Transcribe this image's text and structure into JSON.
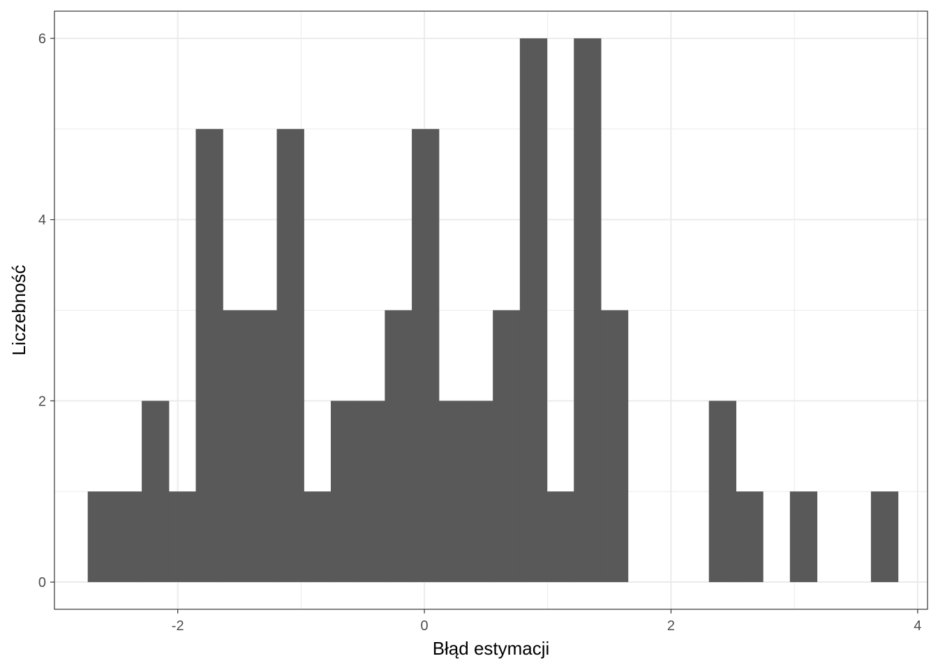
{
  "chart_data": {
    "type": "histogram",
    "xlabel": "Błąd estymacji",
    "ylabel": "Liczebność",
    "xlim": [
      -3.0,
      4.08
    ],
    "ylim": [
      -0.3,
      6.3
    ],
    "x_ticks": [
      -2,
      0,
      2,
      4
    ],
    "x_tick_labels": [
      "-2",
      "0",
      "2",
      "4"
    ],
    "y_ticks": [
      0,
      2,
      4,
      6
    ],
    "y_tick_labels": [
      "0",
      "2",
      "4",
      "6"
    ],
    "bin_width": 0.219,
    "bins": [
      {
        "x_start": -2.73,
        "count": 1
      },
      {
        "x_start": -2.511,
        "count": 1
      },
      {
        "x_start": -2.292,
        "count": 2
      },
      {
        "x_start": -2.073,
        "count": 1
      },
      {
        "x_start": -1.854,
        "count": 5
      },
      {
        "x_start": -1.635,
        "count": 3
      },
      {
        "x_start": -1.416,
        "count": 3
      },
      {
        "x_start": -1.197,
        "count": 5
      },
      {
        "x_start": -0.978,
        "count": 1
      },
      {
        "x_start": -0.759,
        "count": 2
      },
      {
        "x_start": -0.54,
        "count": 2
      },
      {
        "x_start": -0.321,
        "count": 3
      },
      {
        "x_start": -0.102,
        "count": 5
      },
      {
        "x_start": 0.117,
        "count": 2
      },
      {
        "x_start": 0.336,
        "count": 2
      },
      {
        "x_start": 0.555,
        "count": 3
      },
      {
        "x_start": 0.774,
        "count": 6
      },
      {
        "x_start": 0.993,
        "count": 1
      },
      {
        "x_start": 1.212,
        "count": 6
      },
      {
        "x_start": 1.431,
        "count": 3
      },
      {
        "x_start": 1.65,
        "count": 0
      },
      {
        "x_start": 1.869,
        "count": 0
      },
      {
        "x_start": 2.088,
        "count": 0
      },
      {
        "x_start": 2.307,
        "count": 2
      },
      {
        "x_start": 2.526,
        "count": 1
      },
      {
        "x_start": 2.745,
        "count": 0
      },
      {
        "x_start": 2.964,
        "count": 1
      },
      {
        "x_start": 3.183,
        "count": 0
      },
      {
        "x_start": 3.402,
        "count": 0
      },
      {
        "x_start": 3.621,
        "count": 1
      }
    ],
    "bar_color": "#595959",
    "panel_background": "#ffffff",
    "grid": true,
    "grid_color": "#ebebeb",
    "border_color": "#333333",
    "legend": "none"
  }
}
